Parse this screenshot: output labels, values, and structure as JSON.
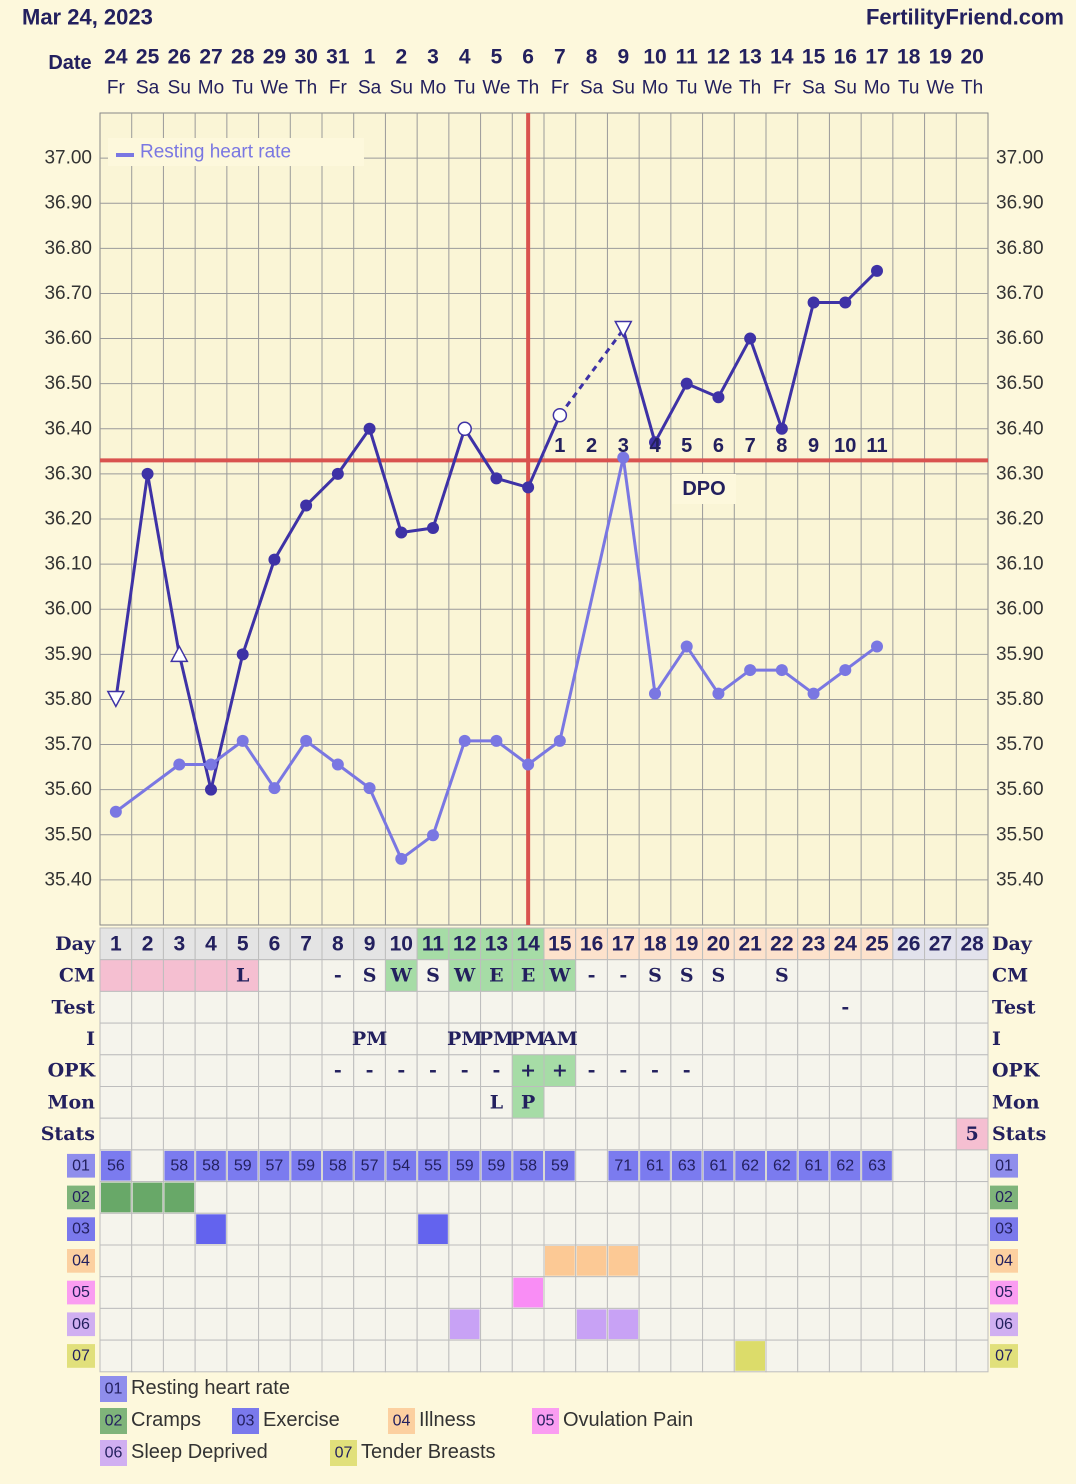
{
  "header": {
    "date": "Mar 24, 2023",
    "site": "FertilityFriend.com"
  },
  "chart_data": {
    "type": "line",
    "x_label": "Date",
    "dates": [
      24,
      25,
      26,
      27,
      28,
      29,
      30,
      31,
      1,
      2,
      3,
      4,
      5,
      6,
      7,
      8,
      9,
      10,
      11,
      12,
      13,
      14,
      15,
      16,
      17,
      18,
      19,
      20
    ],
    "weekdays": [
      "Fr",
      "Sa",
      "Su",
      "Mo",
      "Tu",
      "We",
      "Th",
      "Fr",
      "Sa",
      "Su",
      "Mo",
      "Tu",
      "We",
      "Th",
      "Fr",
      "Sa",
      "Su",
      "Mo",
      "Tu",
      "We",
      "Th",
      "Fr",
      "Sa",
      "Su",
      "Mo",
      "Tu",
      "We",
      "Th"
    ],
    "ylim": [
      35.3,
      37.1
    ],
    "yticks": [
      {
        "value": 37.0,
        "label": "37.00"
      },
      {
        "value": 36.9,
        "label": "36.90"
      },
      {
        "value": 36.8,
        "label": "36.80"
      },
      {
        "value": 36.7,
        "label": "36.70"
      },
      {
        "value": 36.6,
        "label": "36.60"
      },
      {
        "value": 36.5,
        "label": "36.50"
      },
      {
        "value": 36.4,
        "label": "36.40"
      },
      {
        "value": 36.3,
        "label": "36.30"
      },
      {
        "value": 36.2,
        "label": "36.20"
      },
      {
        "value": 36.1,
        "label": "36.10"
      },
      {
        "value": 36.0,
        "label": "36.00"
      },
      {
        "value": 35.9,
        "label": "35.90"
      },
      {
        "value": 35.8,
        "label": "35.80"
      },
      {
        "value": 35.7,
        "label": "35.70"
      },
      {
        "value": 35.6,
        "label": "35.60"
      },
      {
        "value": 35.5,
        "label": "35.50"
      },
      {
        "value": 35.4,
        "label": "35.40"
      }
    ],
    "y2lim": [
      51.2,
      85.6
    ],
    "grid": true,
    "coverline": 36.33,
    "ovulation_day": 14,
    "series": [
      {
        "color": "#3e32a6",
        "gap_style": "dashed",
        "values": [
          35.8,
          36.3,
          35.9,
          35.6,
          35.9,
          36.11,
          36.23,
          36.3,
          36.4,
          36.17,
          36.18,
          36.4,
          36.29,
          36.27,
          36.43,
          null,
          36.62,
          36.37,
          36.5,
          36.47,
          36.6,
          36.4,
          36.68,
          36.68,
          36.75,
          null,
          null,
          null
        ],
        "markers": [
          "triangle-down",
          "circle",
          "triangle-up",
          "circle",
          "circle",
          "circle",
          "circle",
          "circle",
          "circle",
          "circle",
          "circle",
          "open-circle",
          "circle",
          "circle",
          "open-circle",
          null,
          "triangle-down",
          "circle",
          "circle",
          "circle",
          "circle",
          "circle",
          "circle",
          "circle",
          "circle",
          null,
          null,
          null
        ]
      },
      {
        "name": "Resting heart rate",
        "color": "#7a77e2",
        "axis": "y2",
        "gap_style": "solid",
        "values": [
          56,
          null,
          58,
          58,
          59,
          57,
          59,
          58,
          57,
          54,
          55,
          59,
          59,
          58,
          59,
          null,
          71,
          61,
          63,
          61,
          62,
          62,
          61,
          62,
          63,
          null,
          null,
          null
        ]
      }
    ],
    "dpo_label": "DPO",
    "dpo": [
      null,
      null,
      null,
      null,
      null,
      null,
      null,
      null,
      null,
      null,
      null,
      null,
      null,
      null,
      1,
      2,
      3,
      4,
      5,
      6,
      7,
      8,
      9,
      10,
      11,
      null,
      null,
      null
    ]
  },
  "table": {
    "labels": [
      "Day",
      "CM",
      "Test",
      "I",
      "OPK",
      "Mon",
      "Stats"
    ],
    "days": [
      1,
      2,
      3,
      4,
      5,
      6,
      7,
      8,
      9,
      10,
      11,
      12,
      13,
      14,
      15,
      16,
      17,
      18,
      19,
      20,
      21,
      22,
      23,
      24,
      25,
      26,
      27,
      28
    ],
    "rows": [
      [
        null,
        null,
        null,
        null,
        "L",
        null,
        null,
        "-",
        "S",
        "W",
        "S",
        "W",
        "E",
        "E",
        "W",
        "-",
        "-",
        "S",
        "S",
        "S",
        null,
        "S",
        null,
        null,
        null,
        null,
        null,
        null
      ],
      [
        null,
        null,
        null,
        null,
        null,
        null,
        null,
        null,
        null,
        null,
        null,
        null,
        null,
        null,
        null,
        null,
        null,
        null,
        null,
        null,
        null,
        null,
        null,
        "-",
        null,
        null,
        null,
        null
      ],
      [
        null,
        null,
        null,
        null,
        null,
        null,
        null,
        null,
        "PM",
        null,
        null,
        "PM",
        "PM",
        "PM",
        "AM",
        null,
        null,
        null,
        null,
        null,
        null,
        null,
        null,
        null,
        null,
        null,
        null,
        null
      ],
      [
        null,
        null,
        null,
        null,
        null,
        null,
        null,
        "-",
        "-",
        "-",
        "-",
        "-",
        "-",
        "+",
        "+",
        "-",
        "-",
        "-",
        "-",
        null,
        null,
        null,
        null,
        null,
        null,
        null,
        null,
        null
      ],
      [
        null,
        null,
        null,
        null,
        null,
        null,
        null,
        null,
        null,
        null,
        null,
        null,
        "L",
        "P",
        null,
        null,
        null,
        null,
        null,
        null,
        null,
        null,
        null,
        null,
        null,
        null,
        null,
        null
      ],
      [
        null,
        null,
        null,
        null,
        null,
        null,
        null,
        null,
        null,
        null,
        null,
        null,
        null,
        null,
        null,
        null,
        null,
        null,
        null,
        null,
        null,
        null,
        null,
        null,
        null,
        null,
        null,
        "5"
      ]
    ],
    "highlights": [
      {
        "row": 0,
        "days": [
          1,
          2,
          3,
          4,
          5,
          6,
          7,
          8,
          9,
          10
        ],
        "color": "#e4e4e4"
      },
      {
        "row": 0,
        "days": [
          11,
          12,
          13,
          14
        ],
        "color": "#a6dca6"
      },
      {
        "row": 0,
        "days": [
          15,
          16,
          17,
          18,
          19,
          20,
          21,
          22,
          23,
          24,
          25
        ],
        "color": "#fde2cc"
      },
      {
        "row": 0,
        "days": [
          26,
          27,
          28
        ],
        "color": "#e2e2ec"
      },
      {
        "row": 1,
        "days": [
          1,
          2,
          3,
          4,
          5
        ],
        "color": "#f5bfd1"
      },
      {
        "row": 1,
        "days": [
          10,
          12,
          13,
          14,
          15
        ],
        "color": "#a6dca6"
      },
      {
        "row": 4,
        "days": [
          14,
          15
        ],
        "color": "#a6dca6"
      },
      {
        "row": 5,
        "days": [
          14
        ],
        "color": "#a6dca6"
      },
      {
        "row": 6,
        "days": [
          28
        ],
        "color": "#f5bfd1"
      }
    ],
    "symptoms": [
      {
        "code": "01",
        "name": "Resting heart rate",
        "color": "#7b7bef"
      },
      {
        "code": "02",
        "name": "Cramps",
        "color": "#68a868",
        "days": [
          1,
          2,
          3
        ]
      },
      {
        "code": "03",
        "name": "Exercise",
        "color": "#6363ee",
        "days": [
          4,
          11
        ]
      },
      {
        "code": "04",
        "name": "Illness",
        "color": "#fcc995",
        "days": [
          15,
          16,
          17
        ]
      },
      {
        "code": "05",
        "name": "Ovulation Pain",
        "color": "#f98df5",
        "days": [
          14
        ]
      },
      {
        "code": "06",
        "name": "Sleep Deprived",
        "color": "#c8a2f5",
        "days": [
          12,
          16,
          17
        ]
      },
      {
        "code": "07",
        "name": "Tender Breasts",
        "color": "#dcdc6a",
        "days": [
          21
        ]
      }
    ]
  }
}
